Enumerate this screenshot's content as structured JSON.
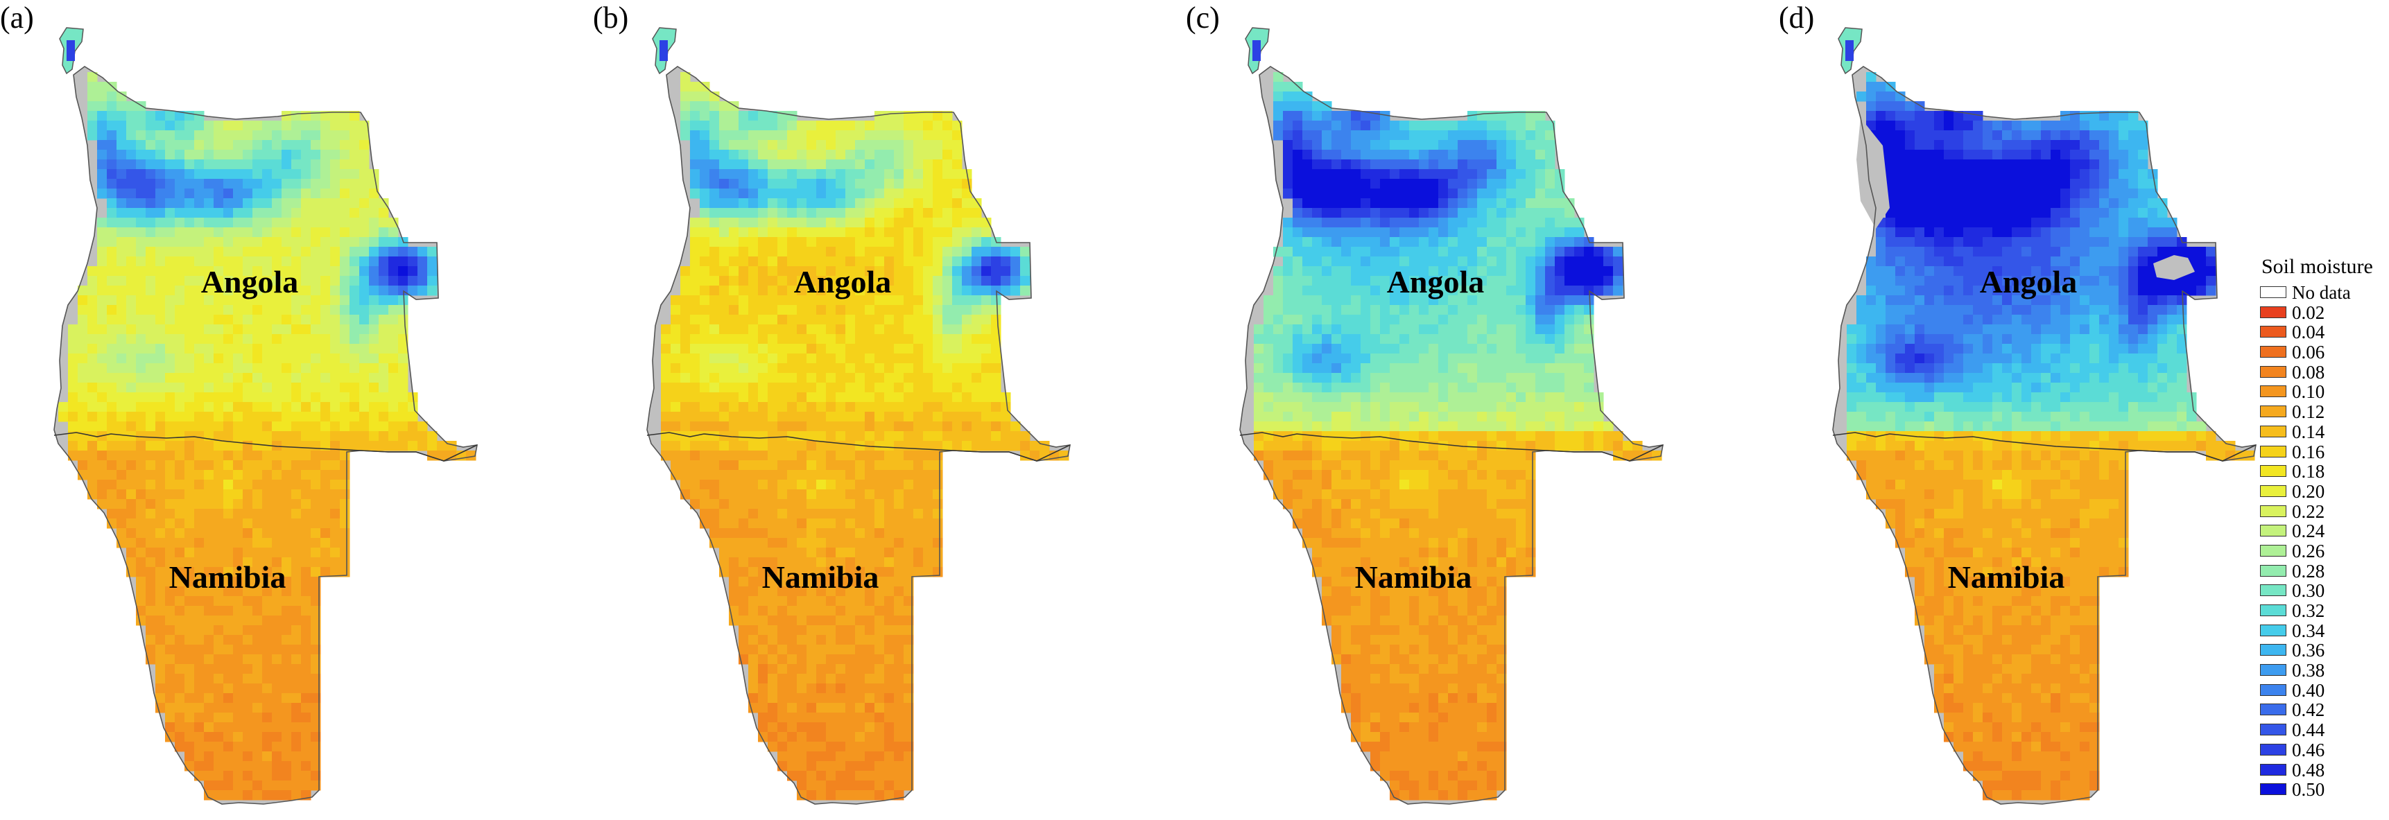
{
  "panels": [
    {
      "letter": "(a)",
      "variant": "a"
    },
    {
      "letter": "(b)",
      "variant": "b"
    },
    {
      "letter": "(c)",
      "variant": "c"
    },
    {
      "letter": "(d)",
      "variant": "d"
    }
  ],
  "map_labels": {
    "north_country": "Angola",
    "south_country": "Namibia"
  },
  "legend": {
    "title": "Soil moisture",
    "entries": [
      {
        "label": "No data",
        "color": "#ffffff"
      },
      {
        "label": "0.02",
        "color": "#e8401e"
      },
      {
        "label": "0.04",
        "color": "#ec5a1e"
      },
      {
        "label": "0.06",
        "color": "#ef701f"
      },
      {
        "label": "0.08",
        "color": "#f2841f"
      },
      {
        "label": "0.10",
        "color": "#f4961f"
      },
      {
        "label": "0.12",
        "color": "#f5a91f"
      },
      {
        "label": "0.14",
        "color": "#f6bd1c"
      },
      {
        "label": "0.16",
        "color": "#f5d21a"
      },
      {
        "label": "0.18",
        "color": "#f2e622"
      },
      {
        "label": "0.20",
        "color": "#e9f03c"
      },
      {
        "label": "0.22",
        "color": "#d9f25e"
      },
      {
        "label": "0.24",
        "color": "#c4f27c"
      },
      {
        "label": "0.26",
        "color": "#aef096"
      },
      {
        "label": "0.28",
        "color": "#93ecae"
      },
      {
        "label": "0.30",
        "color": "#76e6c4"
      },
      {
        "label": "0.32",
        "color": "#5bdcd6"
      },
      {
        "label": "0.34",
        "color": "#45ccea"
      },
      {
        "label": "0.36",
        "color": "#3db6f0"
      },
      {
        "label": "0.38",
        "color": "#3d9cf0"
      },
      {
        "label": "0.40",
        "color": "#3c83ee"
      },
      {
        "label": "0.42",
        "color": "#3a6ceb"
      },
      {
        "label": "0.44",
        "color": "#3456e8"
      },
      {
        "label": "0.46",
        "color": "#2c41e4"
      },
      {
        "label": "0.48",
        "color": "#1f2ae0"
      },
      {
        "label": "0.50",
        "color": "#0b10dc"
      }
    ]
  },
  "colors": {
    "no_data_fill": "#c0c0c0",
    "outline": "#555555",
    "border_line": "#333333"
  }
}
